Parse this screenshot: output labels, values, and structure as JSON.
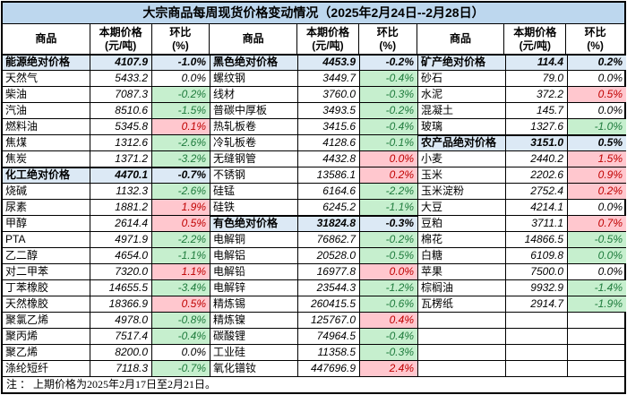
{
  "title": "大宗商品每周现货价格变动情况（2025年2月24日--2月28日）",
  "columns": {
    "commodity": "商品",
    "price_line1": "本期价格",
    "price_line2": "(元/吨)",
    "pct_line1": "环比",
    "pct_line2": "(%)"
  },
  "footer_note": "注 ： 上期价格为2025年2月17日至2月21日。",
  "colors": {
    "title_bg": "#BDD7EE",
    "category_row_bg": "#DCE9F5",
    "increase_bg": "#FFC7CE",
    "increase_text": "#C00000",
    "decrease_bg": "#C6EFCE",
    "decrease_text": "#1E7B3C",
    "border": "#000000"
  },
  "groups": [
    {
      "rows": [
        {
          "name": "能源绝对价格",
          "price": "4107.9",
          "pct": "-1.0%",
          "type": "category",
          "trend": "flat"
        },
        {
          "name": "天然气",
          "price": "5433.2",
          "pct": "0.0%",
          "type": "item",
          "trend": "flat"
        },
        {
          "name": "柴油",
          "price": "7087.3",
          "pct": "-0.2%",
          "type": "item",
          "trend": "down"
        },
        {
          "name": "汽油",
          "price": "8510.6",
          "pct": "-1.5%",
          "type": "item",
          "trend": "down"
        },
        {
          "name": "燃料油",
          "price": "5345.8",
          "pct": "0.1%",
          "type": "item",
          "trend": "up"
        },
        {
          "name": "焦煤",
          "price": "1312.6",
          "pct": "-2.6%",
          "type": "item",
          "trend": "down"
        },
        {
          "name": "焦炭",
          "price": "1371.2",
          "pct": "-3.2%",
          "type": "item",
          "trend": "down"
        },
        {
          "name": "化工绝对价格",
          "price": "4470.1",
          "pct": "-0.7%",
          "type": "category",
          "trend": "flat"
        },
        {
          "name": "烧碱",
          "price": "1132.3",
          "pct": "-2.6%",
          "type": "item",
          "trend": "down"
        },
        {
          "name": "尿素",
          "price": "1881.2",
          "pct": "1.9%",
          "type": "item",
          "trend": "up"
        },
        {
          "name": "甲醇",
          "price": "2614.4",
          "pct": "0.5%",
          "type": "item",
          "trend": "up"
        },
        {
          "name": "PTA",
          "price": "4971.9",
          "pct": "-2.2%",
          "type": "item",
          "trend": "down"
        },
        {
          "name": "乙二醇",
          "price": "4654.0",
          "pct": "-1.1%",
          "type": "item",
          "trend": "down"
        },
        {
          "name": "对二甲苯",
          "price": "7320.0",
          "pct": "1.1%",
          "type": "item",
          "trend": "up"
        },
        {
          "name": "丁苯橡胶",
          "price": "14655.5",
          "pct": "-3.4%",
          "type": "item",
          "trend": "down"
        },
        {
          "name": "天然橡胶",
          "price": "18366.9",
          "pct": "0.5%",
          "type": "item",
          "trend": "up"
        },
        {
          "name": "聚氯乙烯",
          "price": "4978.0",
          "pct": "-0.8%",
          "type": "item",
          "trend": "down"
        },
        {
          "name": "聚丙烯",
          "price": "7517.4",
          "pct": "-0.4%",
          "type": "item",
          "trend": "down"
        },
        {
          "name": "聚乙烯",
          "price": "8200.0",
          "pct": "0.0%",
          "type": "item",
          "trend": "flat"
        },
        {
          "name": "涤纶短纤",
          "price": "7118.3",
          "pct": "-0.7%",
          "type": "item",
          "trend": "down"
        }
      ]
    },
    {
      "rows": [
        {
          "name": "黑色绝对价格",
          "price": "4453.9",
          "pct": "-0.2%",
          "type": "category",
          "trend": "flat"
        },
        {
          "name": "螺纹钢",
          "price": "3449.7",
          "pct": "-0.4%",
          "type": "item",
          "trend": "down"
        },
        {
          "name": "线材",
          "price": "3760.0",
          "pct": "-0.3%",
          "type": "item",
          "trend": "down"
        },
        {
          "name": "普碳中厚板",
          "price": "3493.5",
          "pct": "-0.2%",
          "type": "item",
          "trend": "down"
        },
        {
          "name": "热轧板卷",
          "price": "3415.6",
          "pct": "-0.4%",
          "type": "item",
          "trend": "down"
        },
        {
          "name": "冷轧板卷",
          "price": "4128.6",
          "pct": "-0.1%",
          "type": "item",
          "trend": "down"
        },
        {
          "name": "无缝钢管",
          "price": "4432.8",
          "pct": "0.0%",
          "type": "item",
          "trend": "up"
        },
        {
          "name": "不锈钢",
          "price": "13586.1",
          "pct": "0.2%",
          "type": "item",
          "trend": "up"
        },
        {
          "name": "硅锰",
          "price": "6164.6",
          "pct": "-2.2%",
          "type": "item",
          "trend": "down"
        },
        {
          "name": "硅铁",
          "price": "6245.2",
          "pct": "-1.1%",
          "type": "item",
          "trend": "down"
        },
        {
          "name": "有色绝对价格",
          "price": "31824.8",
          "pct": "-0.3%",
          "type": "category",
          "trend": "flat"
        },
        {
          "name": "电解铜",
          "price": "76862.7",
          "pct": "-0.2%",
          "type": "item",
          "trend": "down"
        },
        {
          "name": "电解铝",
          "price": "20528.0",
          "pct": "-0.5%",
          "type": "item",
          "trend": "down"
        },
        {
          "name": "电解铅",
          "price": "16977.8",
          "pct": "0.0%",
          "type": "item",
          "trend": "up"
        },
        {
          "name": "电解锌",
          "price": "23544.3",
          "pct": "-1.2%",
          "type": "item",
          "trend": "down"
        },
        {
          "name": "精炼锡",
          "price": "260415.5",
          "pct": "-0.6%",
          "type": "item",
          "trend": "down"
        },
        {
          "name": "精炼镍",
          "price": "125767.0",
          "pct": "0.4%",
          "type": "item",
          "trend": "up"
        },
        {
          "name": "碳酸锂",
          "price": "74964.5",
          "pct": "-0.4%",
          "type": "item",
          "trend": "down"
        },
        {
          "name": "工业硅",
          "price": "11358.5",
          "pct": "-0.3%",
          "type": "item",
          "trend": "down"
        },
        {
          "name": "氧化镨钕",
          "price": "447696.9",
          "pct": "2.4%",
          "type": "item",
          "trend": "up"
        }
      ]
    },
    {
      "rows": [
        {
          "name": "矿产绝对价格",
          "price": "114.4",
          "pct": "0.2%",
          "type": "category",
          "trend": "flat"
        },
        {
          "name": "砂石",
          "price": "79.0",
          "pct": "0.0%",
          "type": "item",
          "trend": "flat"
        },
        {
          "name": "水泥",
          "price": "372.2",
          "pct": "0.5%",
          "type": "item",
          "trend": "up"
        },
        {
          "name": "混凝土",
          "price": "145.7",
          "pct": "0.0%",
          "type": "item",
          "trend": "flat"
        },
        {
          "name": "玻璃",
          "price": "1327.6",
          "pct": "-1.0%",
          "type": "item",
          "trend": "down"
        },
        {
          "name": "农产品绝对价格",
          "price": "3151.0",
          "pct": "0.5%",
          "type": "category",
          "trend": "flat"
        },
        {
          "name": "小麦",
          "price": "2440.2",
          "pct": "1.5%",
          "type": "item",
          "trend": "up"
        },
        {
          "name": "玉米",
          "price": "2202.6",
          "pct": "0.9%",
          "type": "item",
          "trend": "up"
        },
        {
          "name": "玉米淀粉",
          "price": "2752.4",
          "pct": "0.2%",
          "type": "item",
          "trend": "up"
        },
        {
          "name": "大豆",
          "price": "4214.1",
          "pct": "0.0%",
          "type": "item",
          "trend": "flat"
        },
        {
          "name": "豆粕",
          "price": "3711.1",
          "pct": "0.7%",
          "type": "item",
          "trend": "up"
        },
        {
          "name": "棉花",
          "price": "14866.5",
          "pct": "-0.5%",
          "type": "item",
          "trend": "down"
        },
        {
          "name": "白糖",
          "price": "6109.8",
          "pct": "0.0%",
          "type": "item",
          "trend": "down"
        },
        {
          "name": "苹果",
          "price": "7500.0",
          "pct": "0.0%",
          "type": "item",
          "trend": "flat"
        },
        {
          "name": "棕榈油",
          "price": "9932.9",
          "pct": "-1.4%",
          "type": "item",
          "trend": "down"
        },
        {
          "name": "瓦楞纸",
          "price": "2914.7",
          "pct": "-1.9%",
          "type": "item",
          "trend": "down"
        },
        {
          "name": "",
          "price": "",
          "pct": "",
          "type": "empty",
          "trend": "flat"
        },
        {
          "name": "",
          "price": "",
          "pct": "",
          "type": "empty",
          "trend": "flat"
        },
        {
          "name": "",
          "price": "",
          "pct": "",
          "type": "empty",
          "trend": "flat"
        },
        {
          "name": "",
          "price": "",
          "pct": "",
          "type": "empty",
          "trend": "flat"
        }
      ]
    }
  ]
}
